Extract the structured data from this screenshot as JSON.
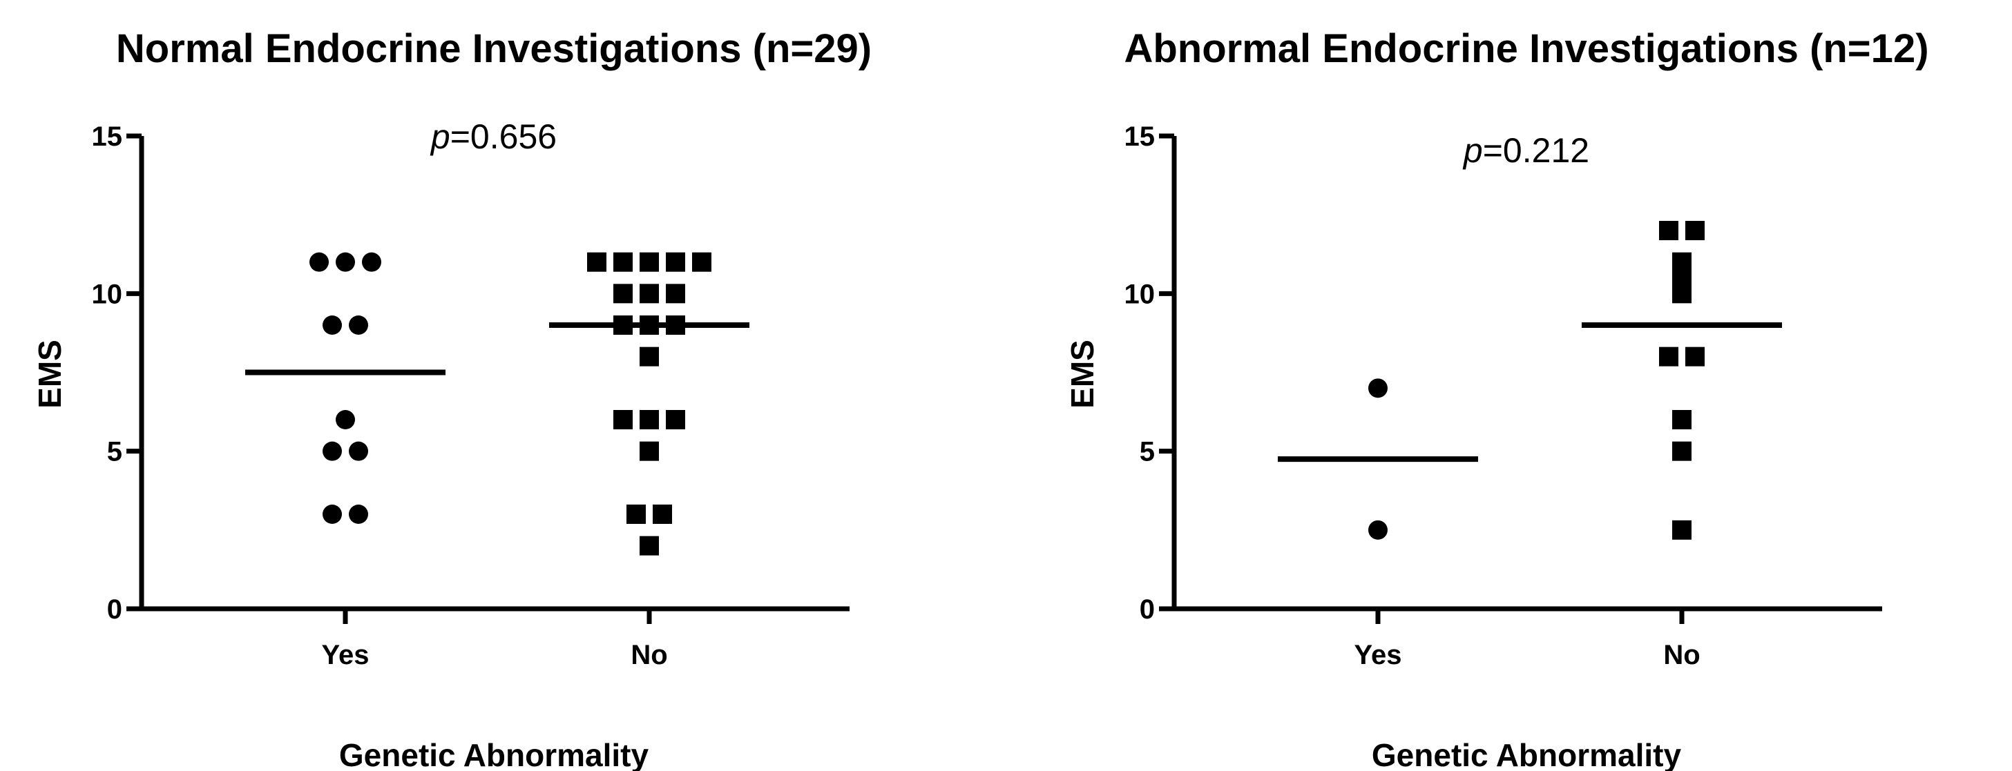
{
  "chart_data": [
    {
      "type": "scatter",
      "title": "Normal Endocrine Investigations (n=29)",
      "xlabel": "Genetic Abnormality",
      "ylabel": "EMS",
      "ylim": [
        0,
        15
      ],
      "yticks": [
        "0",
        "5",
        "10",
        "15"
      ],
      "categories": [
        "Yes",
        "No"
      ],
      "annotation": {
        "prefix": "p",
        "value": "=0.656"
      },
      "series": [
        {
          "category": "Yes",
          "marker": "circle",
          "mean": 7.5,
          "values": [
            11,
            11,
            11,
            9,
            9,
            6,
            5,
            5,
            3,
            3
          ]
        },
        {
          "category": "No",
          "marker": "square",
          "mean": 9,
          "values": [
            11,
            11,
            11,
            11,
            11,
            10,
            10,
            10,
            9,
            9,
            9,
            8,
            6,
            6,
            6,
            5,
            3,
            3,
            2
          ]
        }
      ]
    },
    {
      "type": "scatter",
      "title": "Abnormal Endocrine Investigations (n=12)",
      "xlabel": "Genetic Abnormality",
      "ylabel": "EMS",
      "ylim": [
        0,
        15
      ],
      "yticks": [
        "0",
        "5",
        "10",
        "15"
      ],
      "categories": [
        "Yes",
        "No"
      ],
      "annotation": {
        "prefix": "p",
        "value": "=0.212"
      },
      "series": [
        {
          "category": "Yes",
          "marker": "circle",
          "mean": 4.75,
          "values": [
            7,
            2.5
          ]
        },
        {
          "category": "No",
          "marker": "square",
          "mean": 9,
          "values": [
            12,
            12,
            11,
            10.5,
            10,
            8,
            8,
            6,
            5,
            2.5
          ]
        }
      ]
    }
  ]
}
